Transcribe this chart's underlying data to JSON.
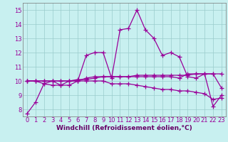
{
  "xlabel": "Windchill (Refroidissement éolien,°C)",
  "bg_color": "#c8f0f0",
  "grid_color": "#99cccc",
  "line_color": "#990099",
  "xlim": [
    -0.5,
    23.5
  ],
  "ylim": [
    7.5,
    15.5
  ],
  "xticks": [
    0,
    1,
    2,
    3,
    4,
    5,
    6,
    7,
    8,
    9,
    10,
    11,
    12,
    13,
    14,
    15,
    16,
    17,
    18,
    19,
    20,
    21,
    22,
    23
  ],
  "yticks": [
    8,
    9,
    10,
    11,
    12,
    13,
    14,
    15
  ],
  "series": [
    [
      7.7,
      8.5,
      9.8,
      10.0,
      9.7,
      9.7,
      10.0,
      11.8,
      12.0,
      12.0,
      10.2,
      13.6,
      13.7,
      15.0,
      13.6,
      13.0,
      11.8,
      12.0,
      11.7,
      10.3,
      10.2,
      10.5,
      8.2,
      9.0
    ],
    [
      10.0,
      10.0,
      10.0,
      10.0,
      10.0,
      10.0,
      10.0,
      10.2,
      10.3,
      10.3,
      10.3,
      10.3,
      10.3,
      10.3,
      10.3,
      10.3,
      10.3,
      10.3,
      10.2,
      10.5,
      10.5,
      10.5,
      10.5,
      10.5
    ],
    [
      10.0,
      10.0,
      10.0,
      10.0,
      10.0,
      10.0,
      10.1,
      10.1,
      10.2,
      10.3,
      10.3,
      10.3,
      10.3,
      10.4,
      10.4,
      10.4,
      10.4,
      10.4,
      10.4,
      10.4,
      10.5,
      10.5,
      10.5,
      9.5
    ],
    [
      10.0,
      10.0,
      9.8,
      9.7,
      9.7,
      10.0,
      10.0,
      10.0,
      10.0,
      10.0,
      9.8,
      9.8,
      9.8,
      9.7,
      9.6,
      9.5,
      9.4,
      9.4,
      9.3,
      9.3,
      9.2,
      9.1,
      8.7,
      8.8
    ]
  ],
  "marker": "+",
  "markersize": 4,
  "linewidth": 0.9,
  "xlabel_fontsize": 6.5,
  "tick_fontsize": 6,
  "xlabel_color": "#660066",
  "tick_color": "#990099"
}
